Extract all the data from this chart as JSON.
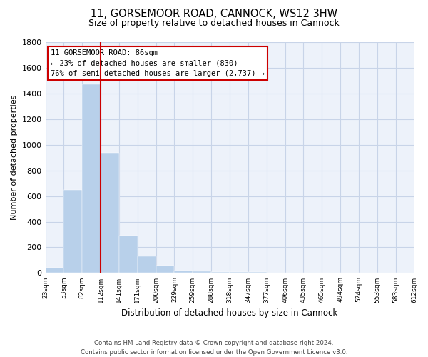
{
  "title1": "11, GORSEMOOR ROAD, CANNOCK, WS12 3HW",
  "title2": "Size of property relative to detached houses in Cannock",
  "xlabel": "Distribution of detached houses by size in Cannock",
  "ylabel": "Number of detached properties",
  "footer1": "Contains HM Land Registry data © Crown copyright and database right 2024.",
  "footer2": "Contains public sector information licensed under the Open Government Licence v3.0.",
  "bin_labels": [
    "23sqm",
    "53sqm",
    "82sqm",
    "112sqm",
    "141sqm",
    "171sqm",
    "200sqm",
    "229sqm",
    "259sqm",
    "288sqm",
    "318sqm",
    "347sqm",
    "377sqm",
    "406sqm",
    "435sqm",
    "465sqm",
    "494sqm",
    "524sqm",
    "553sqm",
    "583sqm",
    "612sqm"
  ],
  "bar_values": [
    40,
    650,
    1470,
    940,
    290,
    130,
    60,
    20,
    15,
    10,
    10,
    10,
    5,
    2,
    1,
    1,
    0,
    0,
    0,
    0
  ],
  "bar_color": "#b8d0ea",
  "grid_color": "#c8d4e8",
  "background_color": "#edf2fa",
  "ylim": [
    0,
    1800
  ],
  "yticks": [
    0,
    200,
    400,
    600,
    800,
    1000,
    1200,
    1400,
    1600,
    1800
  ],
  "property_line_color": "#cc0000",
  "annotation_line1": "11 GORSEMOOR ROAD: 86sqm",
  "annotation_line2": "← 23% of detached houses are smaller (830)",
  "annotation_line3": "76% of semi-detached houses are larger (2,737) →",
  "annotation_box_edgecolor": "#cc0000"
}
